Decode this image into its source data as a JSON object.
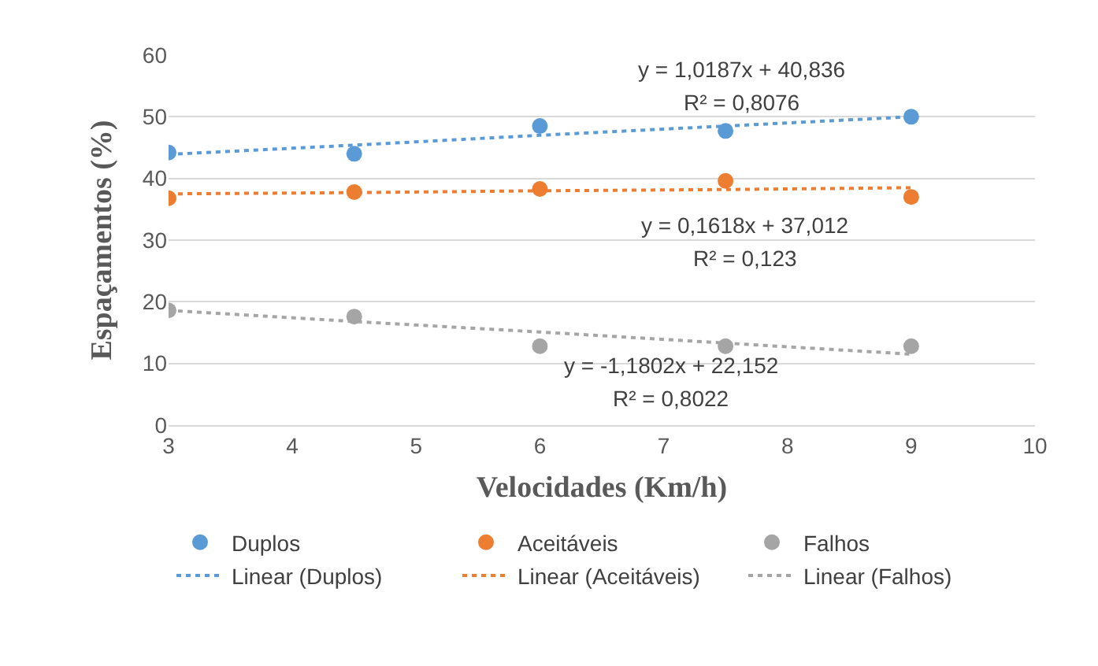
{
  "chart_data": {
    "type": "scatter",
    "xlabel": "Velocidades (Km/h)",
    "ylabel": "Espaçamentos (%)",
    "xlim": [
      3,
      10
    ],
    "xticks": [
      3,
      4,
      5,
      6,
      7,
      8,
      9,
      10
    ],
    "ylim": [
      0,
      60
    ],
    "yticks": [
      0,
      10,
      20,
      30,
      40,
      50,
      60
    ],
    "grid": "y",
    "legend": "bottom",
    "marker": "circle",
    "x": [
      3,
      4.5,
      6,
      7.5,
      9
    ],
    "series": [
      {
        "name": "Duplos",
        "color": "#5b9bd5",
        "values": [
          44.2,
          44,
          48.5,
          47.7,
          50
        ]
      },
      {
        "name": "Aceitáveis",
        "color": "#ed7d31",
        "values": [
          36.8,
          37.8,
          38.3,
          39.6,
          37
        ]
      },
      {
        "name": "Falhos",
        "color": "#a5a5a5",
        "values": [
          18.6,
          17.6,
          12.8,
          12.8,
          12.8
        ]
      },
      {
        "name": "Linear (Duplos)",
        "type": "line",
        "line_style": "dotted",
        "marker": "none",
        "color": "#5b9bd5",
        "values": [
          43.9,
          45.4,
          47.0,
          48.5,
          50.0
        ]
      },
      {
        "name": "Linear (Aceitáveis)",
        "type": "line",
        "line_style": "dotted",
        "marker": "none",
        "color": "#ed7d31",
        "values": [
          37.5,
          37.7,
          38.0,
          38.2,
          38.5
        ]
      },
      {
        "name": "Linear (Falhos)",
        "type": "line",
        "line_style": "dotted",
        "marker": "none",
        "color": "#a5a5a5",
        "values": [
          18.6,
          16.8,
          15.1,
          13.3,
          11.5
        ]
      }
    ],
    "annotations": [
      "y = 1,0187x + 40,836",
      "R² = 0,8076",
      "y = 0,1618x + 37,012",
      "R² = 0,123",
      "y = -1,1802x + 22,152",
      "R² = 0,8022"
    ]
  }
}
